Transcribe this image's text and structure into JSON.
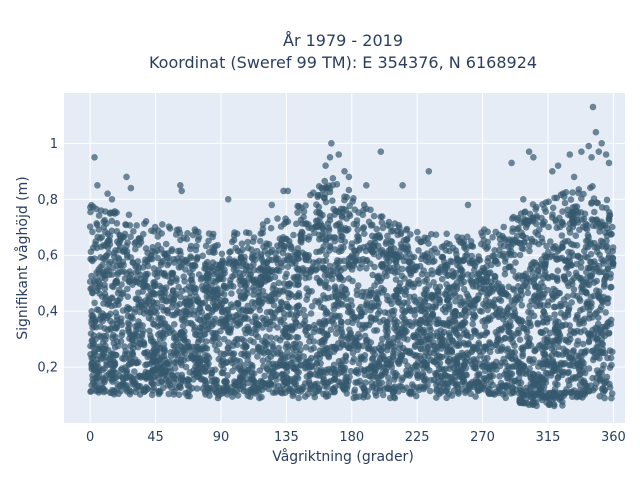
{
  "chart_data": {
    "type": "scatter",
    "title_lines": [
      "År 1979 - 2019",
      "Koordinat (Sweref 99 TM): E 354376, N 6168924"
    ],
    "xlabel": "Vågriktning (grader)",
    "ylabel": "Signifikant våghöjd (m)",
    "xlim": [
      -18,
      368
    ],
    "ylim": [
      0.0,
      1.18
    ],
    "x_ticks": [
      0,
      45,
      90,
      135,
      180,
      225,
      270,
      315,
      360
    ],
    "x_tick_labels": [
      "0",
      "45",
      "90",
      "135",
      "180",
      "225",
      "270",
      "315",
      "360"
    ],
    "y_ticks": [
      0.2,
      0.4,
      0.6,
      0.8,
      1.0
    ],
    "y_tick_labels": [
      "0,2",
      "0,4",
      "0,6",
      "0,8",
      "1"
    ],
    "grid": true,
    "marker_color": "#34586e",
    "plot_bgcolor": "#e5ecf6",
    "series": [
      {
        "envelope": [
          [
            0,
            0.7
          ],
          [
            10,
            0.68
          ],
          [
            20,
            0.67
          ],
          [
            30,
            0.65
          ],
          [
            45,
            0.63
          ],
          [
            60,
            0.62
          ],
          [
            75,
            0.6
          ],
          [
            90,
            0.58
          ],
          [
            105,
            0.6
          ],
          [
            120,
            0.63
          ],
          [
            135,
            0.66
          ],
          [
            150,
            0.72
          ],
          [
            165,
            0.8
          ],
          [
            180,
            0.74
          ],
          [
            195,
            0.68
          ],
          [
            210,
            0.64
          ],
          [
            225,
            0.61
          ],
          [
            240,
            0.59
          ],
          [
            255,
            0.58
          ],
          [
            270,
            0.6
          ],
          [
            285,
            0.63
          ],
          [
            300,
            0.68
          ],
          [
            315,
            0.72
          ],
          [
            330,
            0.74
          ],
          [
            345,
            0.76
          ],
          [
            360,
            0.7
          ]
        ],
        "floor": 0.1,
        "outliers": [
          [
            3,
            0.95
          ],
          [
            5,
            0.85
          ],
          [
            12,
            0.82
          ],
          [
            15,
            0.8
          ],
          [
            25,
            0.88
          ],
          [
            28,
            0.84
          ],
          [
            62,
            0.85
          ],
          [
            63,
            0.83
          ],
          [
            95,
            0.8
          ],
          [
            125,
            0.78
          ],
          [
            133,
            0.83
          ],
          [
            136,
            0.83
          ],
          [
            162,
            0.92
          ],
          [
            165,
            0.95
          ],
          [
            166,
            1.0
          ],
          [
            171,
            0.96
          ],
          [
            175,
            0.9
          ],
          [
            178,
            0.88
          ],
          [
            190,
            0.85
          ],
          [
            200,
            0.97
          ],
          [
            215,
            0.85
          ],
          [
            233,
            0.9
          ],
          [
            260,
            0.78
          ],
          [
            290,
            0.93
          ],
          [
            298,
            0.8
          ],
          [
            302,
            0.97
          ],
          [
            305,
            0.95
          ],
          [
            318,
            0.9
          ],
          [
            322,
            0.92
          ],
          [
            330,
            0.96
          ],
          [
            338,
            0.97
          ],
          [
            343,
            0.99
          ],
          [
            345,
            0.95
          ],
          [
            348,
            1.04
          ],
          [
            350,
            0.97
          ],
          [
            352,
            1.0
          ],
          [
            355,
            0.96
          ],
          [
            346,
            1.13
          ],
          [
            333,
            0.88
          ],
          [
            357,
            0.93
          ]
        ],
        "lowest_dip_near": [
          310,
          0.06
        ]
      }
    ]
  }
}
